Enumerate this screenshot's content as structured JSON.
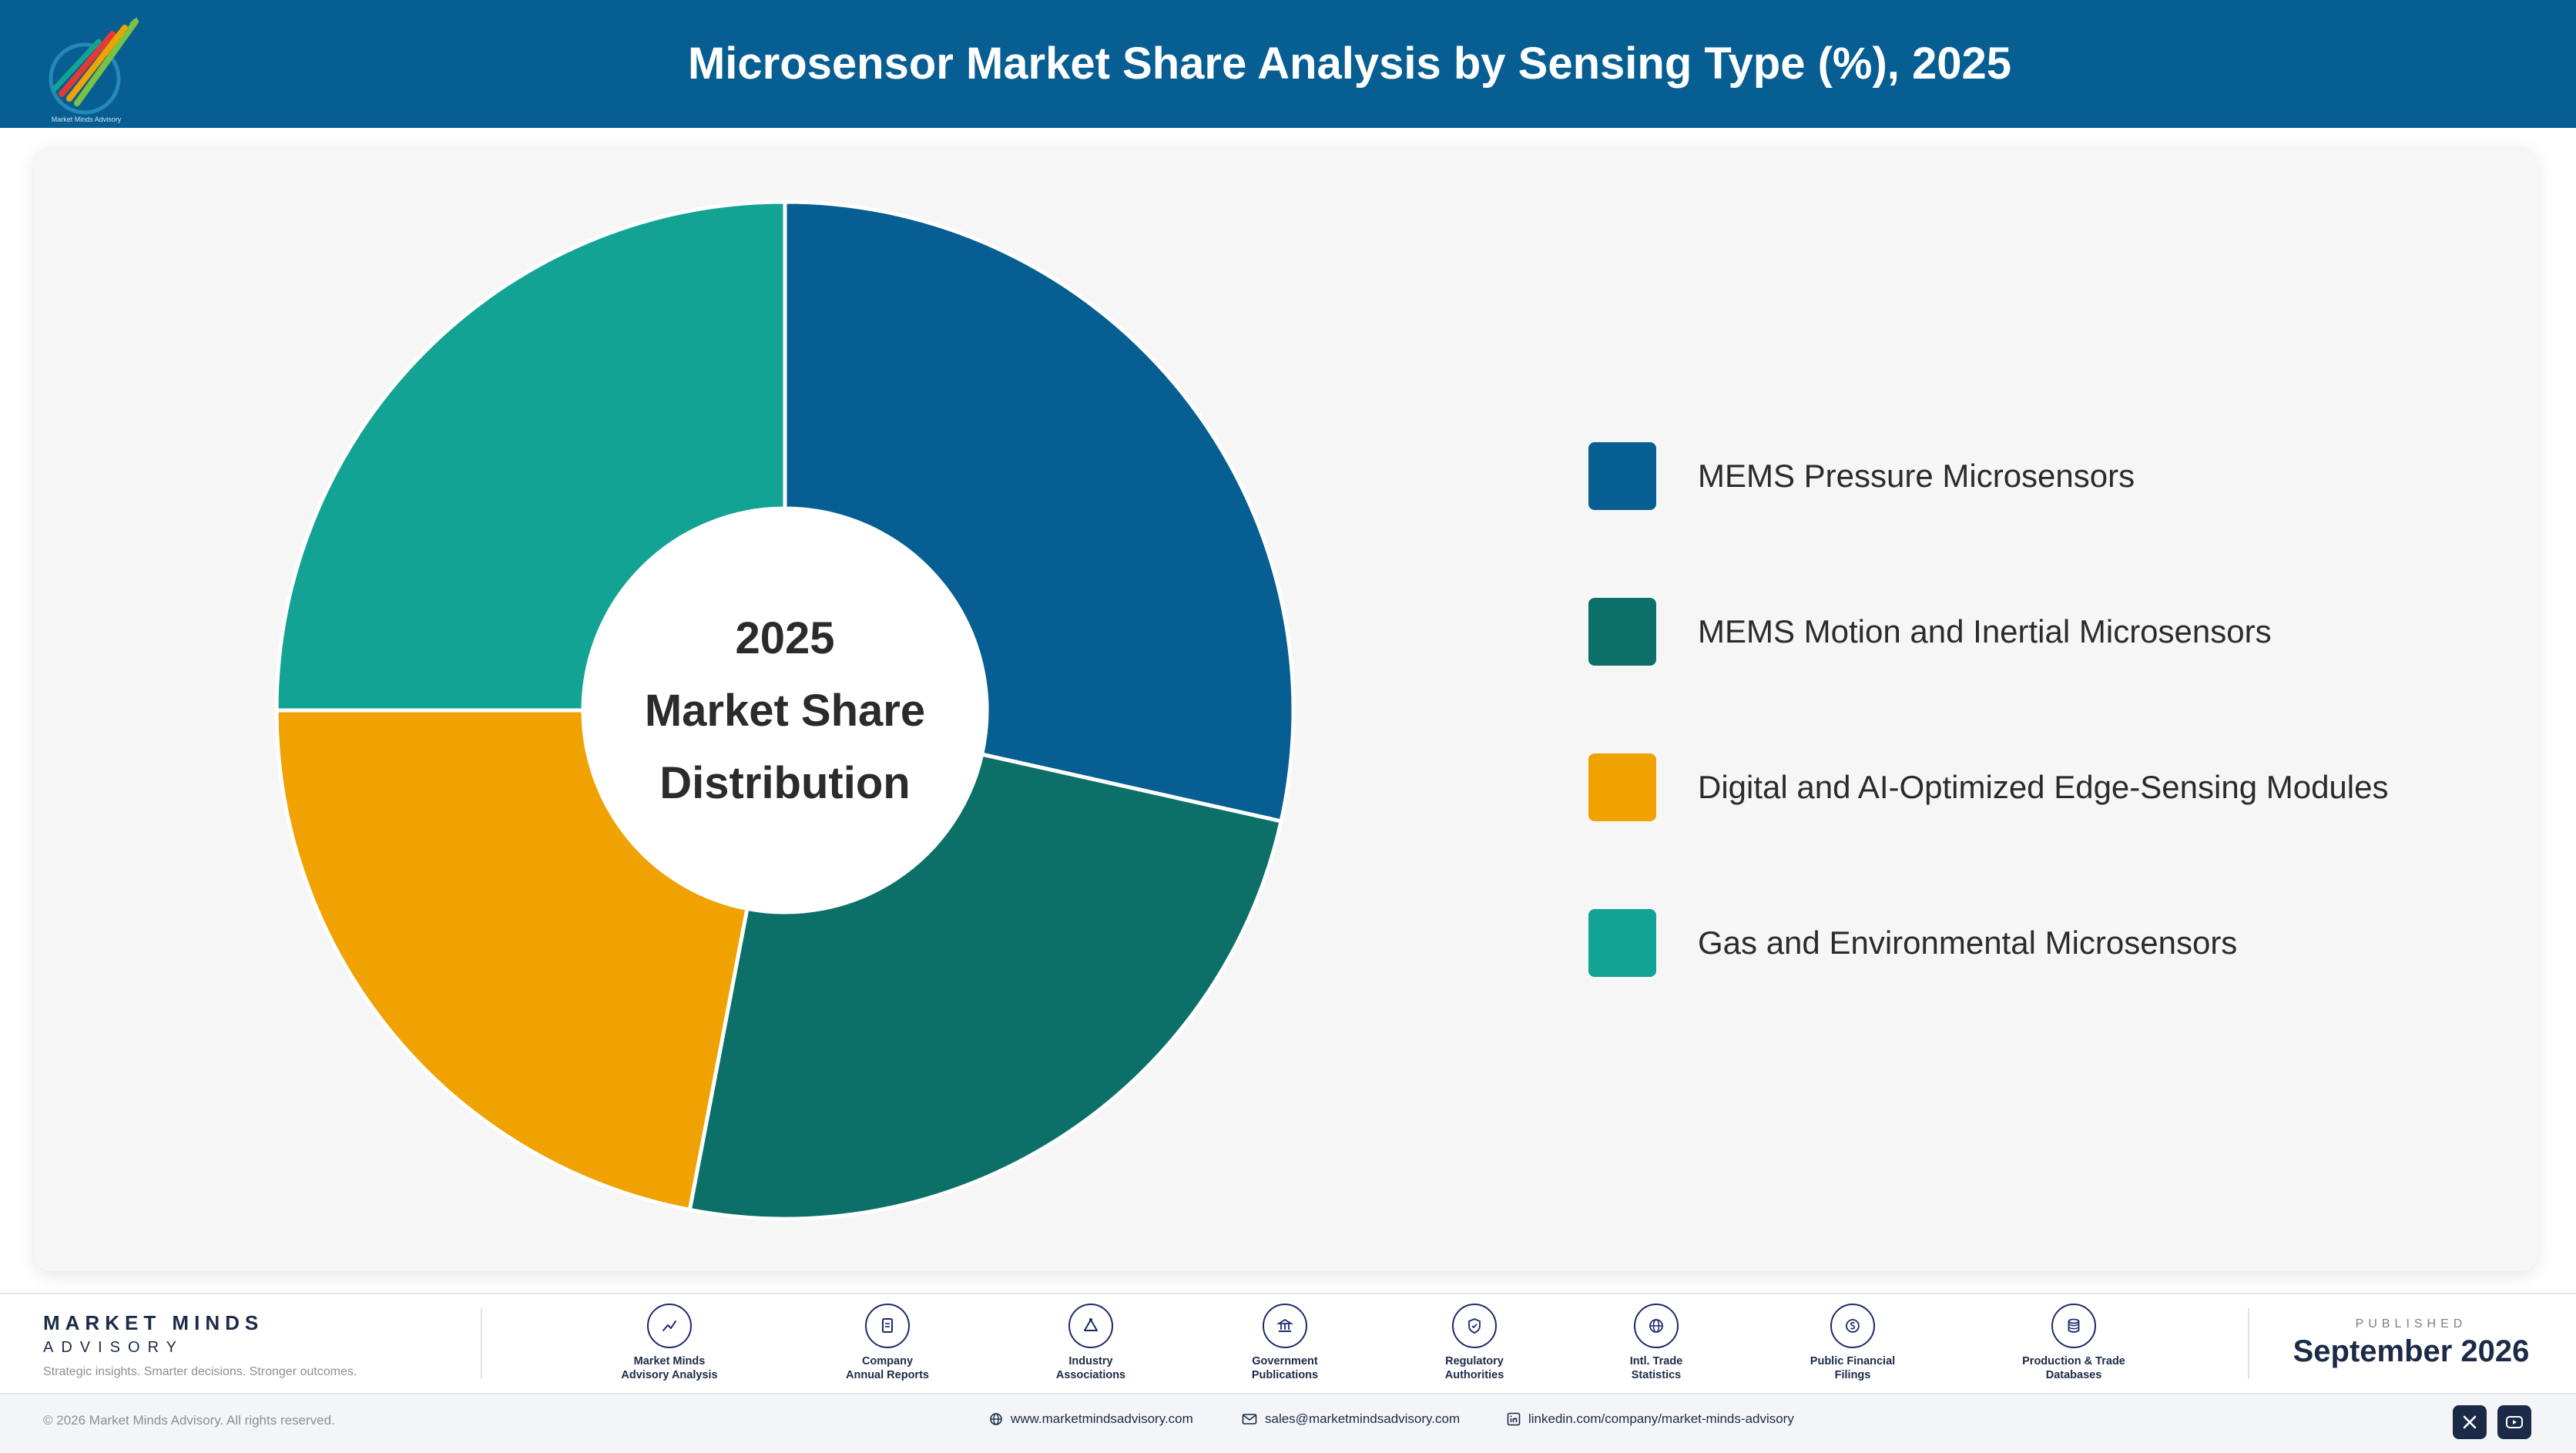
{
  "header": {
    "title": "Microsensor Market Share Analysis by Sensing Type (%), 2025",
    "logo_caption": "Market Minds Advisory",
    "background_color": "#075e92"
  },
  "chart_data": {
    "type": "pie",
    "variant": "donut",
    "center_label_lines": [
      "2025",
      "Market Share",
      "Distribution"
    ],
    "categories": [
      "MEMS Pressure Microsensors",
      "MEMS Motion and Inertial Microsensors",
      "Digital and AI-Optimized Edge-Sensing Modules",
      "Gas and Environmental Microsensors"
    ],
    "values": [
      28.5,
      24.5,
      22.0,
      25.0
    ],
    "colors": [
      "#075e92",
      "#0c7069",
      "#f0a202",
      "#13a394"
    ],
    "legend_position": "right",
    "data_labels": false
  },
  "footer": {
    "brand_name": "MARKET MINDS",
    "brand_sub": "ADVISORY",
    "tagline": "Strategic insights. Smarter decisions. Stronger outcomes.",
    "sources": [
      {
        "label": "Market Minds\nAdvisory Analysis",
        "icon": "trend-line-icon"
      },
      {
        "label": "Company\nAnnual Reports",
        "icon": "document-icon"
      },
      {
        "label": "Industry\nAssociations",
        "icon": "network-icon"
      },
      {
        "label": "Government\nPublications",
        "icon": "government-building-icon"
      },
      {
        "label": "Regulatory\nAuthorities",
        "icon": "shield-check-icon"
      },
      {
        "label": "Intl. Trade\nStatistics",
        "icon": "globe-icon"
      },
      {
        "label": "Public Financial\nFilings",
        "icon": "currency-icon"
      },
      {
        "label": "Production & Trade\nDatabases",
        "icon": "database-icon"
      }
    ],
    "published_label": "PUBLISHED",
    "published_date": "September 2026",
    "copyright": "© 2026 Market Minds Advisory. All rights reserved.",
    "website": "www.marketmindsadvisory.com",
    "email": "sales@marketmindsadvisory.com",
    "linkedin": "linkedin.com/company/market-minds-advisory",
    "social": [
      "x-icon",
      "youtube-icon"
    ]
  }
}
